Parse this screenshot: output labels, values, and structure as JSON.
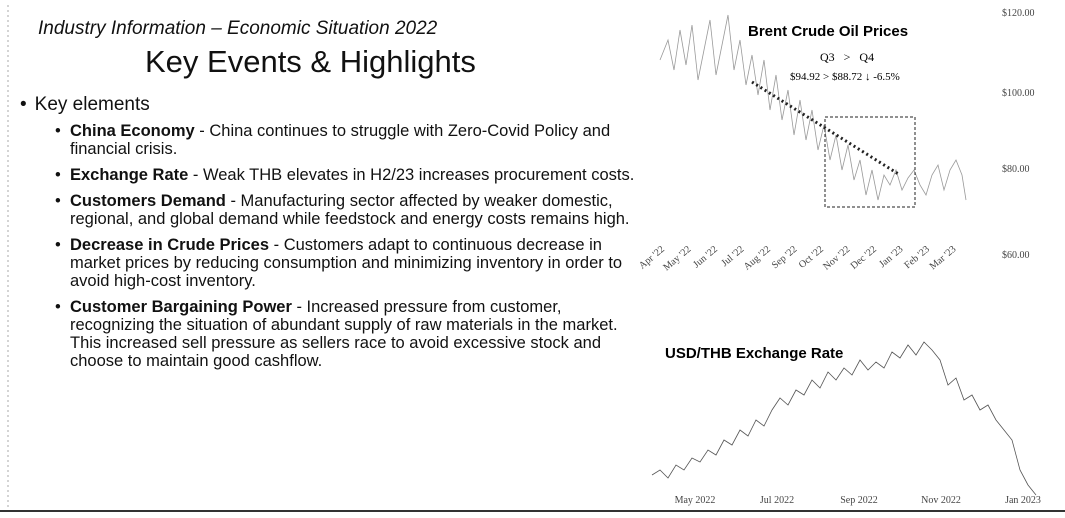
{
  "header": {
    "subtitle": "Industry Information – Economic Situation 2022",
    "title": "Key Events & Highlights"
  },
  "body": {
    "heading": "Key elements",
    "items": [
      {
        "label": "China Economy",
        "text": "- China continues to struggle with Zero-Covid Policy and financial crisis."
      },
      {
        "label": "Exchange Rate",
        "text": "- Weak THB elevates in H2/23 increases procurement costs."
      },
      {
        "label": "Customers Demand",
        "text": "- Manufacturing sector affected by weaker domestic, regional, and global demand while feedstock and energy costs remains high."
      },
      {
        "label": "Decrease in Crude Prices",
        "text": "- Customers adapt to continuous decrease in market prices by reducing consumption and minimizing inventory in order to avoid high-cost inventory."
      },
      {
        "label": "Customer Bargaining Power",
        "text": "- Increased pressure from customer, recognizing the situation of abundant supply of raw materials in the market. This increased sell pressure as sellers race to avoid excessive stock and choose to maintain good cashflow."
      }
    ]
  },
  "oil_chart": {
    "title": "Brent Crude Oil Prices",
    "comparison": "Q3   >   Q4",
    "detail": "$94.92 > $88.72 ↓ -6.5%",
    "y_labels": [
      "$120.00",
      "$100.00",
      "$80.00",
      "$60.00"
    ],
    "x_labels": [
      "Apr '22",
      "May '22",
      "Jun '22",
      "Jul '22",
      "Aug '22",
      "Sep '22",
      "Oct '22",
      "Nov '22",
      "Dec '22",
      "Jan '23",
      "Feb '23",
      "Mar '23"
    ]
  },
  "fx_chart": {
    "title": "USD/THB Exchange Rate",
    "x_labels": [
      "May 2022",
      "Jul 2022",
      "Sep 2022",
      "Nov 2022",
      "Jan 2023"
    ]
  }
}
